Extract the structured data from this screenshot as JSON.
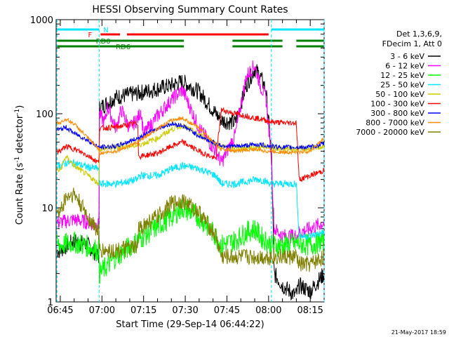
{
  "chart_data": {
    "type": "line",
    "title": "HESSI Observing Summary Count Rates",
    "xlabel": "Start Time (29-Sep-14 06:44:22)",
    "ylabel": "Count Rate (s⁻¹ detector⁻¹)",
    "ylabel_main": "Count Rate (s",
    "ylabel_exp1": "-1",
    "ylabel_mid": " detector",
    "ylabel_exp2": "-1",
    "ylabel_end": ")",
    "yscale": "log",
    "ylim": [
      1,
      1000
    ],
    "xlim_minutes": [
      -1.5,
      95
    ],
    "xtick_labels": [
      "06:45",
      "07:00",
      "07:15",
      "07:30",
      "07:45",
      "08:00",
      "08:15"
    ],
    "xtick_minutes": [
      0,
      15,
      30,
      45,
      60,
      75,
      90
    ],
    "ytick_labels": [
      "1",
      "10",
      "100",
      "1000"
    ],
    "ytick_values": [
      1,
      10,
      100,
      1000
    ],
    "legend_header": [
      "Det 1,3,6,9,",
      "FDecim 1, Att 0"
    ],
    "legend_position": "right",
    "footer_date": "21-May-2017 18:59",
    "flags": [
      {
        "label": "N",
        "color": "#00e5ff",
        "segments": [
          [
            -1.2,
            14
          ],
          [
            76,
            95
          ]
        ]
      },
      {
        "label": "F",
        "color": "#ff0000",
        "segments": [
          [
            14.5,
            21.5
          ],
          [
            24,
            75
          ]
        ]
      },
      {
        "label": "RD0",
        "color": "#008000",
        "segments": [
          [
            -1.2,
            44.5
          ],
          [
            62,
            80
          ],
          [
            85,
            95
          ]
        ]
      },
      {
        "label": "RD6",
        "color": "#008000",
        "segments": [
          [
            -1.2,
            44.5
          ],
          [
            62,
            80
          ],
          [
            85,
            95
          ]
        ]
      }
    ],
    "series": [
      {
        "name": "3 - 6 keV",
        "color": "#000000",
        "x": [
          0,
          5,
          10,
          13.9,
          14.1,
          20,
          30,
          40,
          44,
          50,
          56,
          58,
          63,
          67,
          70,
          72,
          74,
          76,
          77,
          80,
          84,
          85,
          86,
          90,
          95
        ],
        "y": [
          3.5,
          4.5,
          4,
          3,
          115,
          150,
          170,
          200,
          220,
          170,
          100,
          85,
          80,
          200,
          300,
          250,
          180,
          40,
          2,
          1.5,
          1.2,
          1.2,
          1.5,
          1.3,
          2
        ]
      },
      {
        "name": "6 - 12 keV",
        "color": "#ff00ff",
        "x": [
          0,
          5,
          10,
          13.9,
          14.1,
          16,
          17,
          20,
          22,
          25,
          28,
          29,
          30,
          35,
          40,
          44,
          50,
          56,
          58,
          63,
          67,
          70,
          72,
          74,
          76,
          77,
          80,
          84,
          85,
          86,
          90,
          95
        ],
        "y": [
          7,
          7.5,
          7,
          6.5,
          100,
          80,
          120,
          70,
          110,
          70,
          90,
          110,
          60,
          95,
          140,
          180,
          70,
          40,
          30,
          60,
          250,
          330,
          200,
          150,
          35,
          6,
          5,
          5,
          5,
          5.5,
          6,
          7
        ]
      },
      {
        "name": "12 - 25 keV",
        "color": "#00ff00",
        "x": [
          0,
          5,
          10,
          13.9,
          14.1,
          20,
          30,
          40,
          44,
          50,
          56,
          58,
          63,
          67,
          70,
          72,
          74,
          76,
          80,
          85,
          90,
          95
        ],
        "y": [
          4,
          4.3,
          3.9,
          3.5,
          2,
          3,
          5,
          8,
          10,
          8,
          5,
          4,
          4.5,
          5.5,
          6,
          5,
          4.5,
          4,
          4,
          4.2,
          4,
          4.5
        ]
      },
      {
        "name": "25 - 50 keV",
        "color": "#00e5ff",
        "x": [
          0,
          2,
          5,
          10,
          13.9,
          14.1,
          20,
          28,
          28.1,
          35,
          40,
          44,
          50,
          56,
          58,
          63,
          67,
          70,
          72,
          74,
          76,
          80,
          85,
          86,
          90,
          95
        ],
        "y": [
          28,
          30,
          30,
          27,
          26,
          18,
          18,
          20,
          22,
          22,
          26,
          28,
          26,
          22,
          18,
          18,
          19,
          20,
          20,
          19,
          18,
          18,
          18,
          5,
          5,
          5.5
        ]
      },
      {
        "name": "50 - 100 keV",
        "color": "#cccc00",
        "x": [
          0,
          2,
          5,
          10,
          13.9,
          14.1,
          20,
          28,
          35,
          40,
          44,
          50,
          56,
          58,
          63,
          67,
          70,
          72,
          74,
          76,
          80,
          85,
          90,
          95
        ],
        "y": [
          25,
          35,
          28,
          22,
          18,
          42,
          44,
          46,
          55,
          68,
          75,
          60,
          48,
          45,
          42,
          43,
          44,
          45,
          45,
          44,
          42,
          42,
          42,
          45
        ]
      },
      {
        "name": "100 - 300 keV",
        "color": "#ff0000",
        "x": [
          0,
          2,
          5,
          10,
          13.9,
          14.1,
          20,
          28,
          28.1,
          35,
          40,
          44,
          50,
          56,
          58,
          63,
          67,
          70,
          72,
          74,
          76,
          80,
          85,
          86,
          90,
          95
        ],
        "y": [
          40,
          45,
          42,
          36,
          30,
          70,
          72,
          80,
          35,
          38,
          45,
          50,
          40,
          33,
          110,
          100,
          95,
          90,
          88,
          85,
          82,
          80,
          80,
          20,
          22,
          25
        ]
      },
      {
        "name": "300 - 800 keV",
        "color": "#0000ff",
        "x": [
          0,
          2,
          5,
          10,
          13.9,
          14.1,
          20,
          28,
          35,
          40,
          44,
          50,
          56,
          58,
          63,
          67,
          70,
          72,
          74,
          76,
          80,
          85,
          90,
          95
        ],
        "y": [
          68,
          72,
          62,
          52,
          44,
          44,
          45,
          55,
          70,
          78,
          75,
          58,
          48,
          46,
          45,
          46,
          47,
          47,
          46,
          45,
          44,
          44,
          44,
          48
        ]
      },
      {
        "name": "800 - 7000 keV",
        "color": "#ff8c00",
        "x": [
          0,
          2,
          5,
          10,
          13.9,
          14.1,
          20,
          28,
          35,
          40,
          44,
          50,
          56,
          58,
          63,
          67,
          70,
          72,
          74,
          76,
          80,
          85,
          90,
          95
        ],
        "y": [
          80,
          88,
          78,
          55,
          42,
          38,
          40,
          50,
          70,
          85,
          90,
          70,
          48,
          42,
          40,
          41,
          42,
          41,
          40,
          40,
          39,
          39,
          40,
          55
        ]
      },
      {
        "name": "7000 - 20000 keV",
        "color": "#808000",
        "x": [
          0,
          2,
          5,
          10,
          13.9,
          14.1,
          20,
          28,
          28.1,
          35,
          40,
          44,
          50,
          56,
          58,
          63,
          67,
          70,
          72,
          74,
          76,
          80,
          85,
          86,
          90,
          95
        ],
        "y": [
          9,
          13,
          14,
          8,
          5.5,
          3.5,
          3.5,
          3.8,
          6,
          8,
          11,
          12,
          9,
          5,
          3,
          3,
          3,
          3,
          3,
          3,
          3,
          3,
          3,
          2.5,
          2.5,
          3
        ]
      }
    ]
  }
}
